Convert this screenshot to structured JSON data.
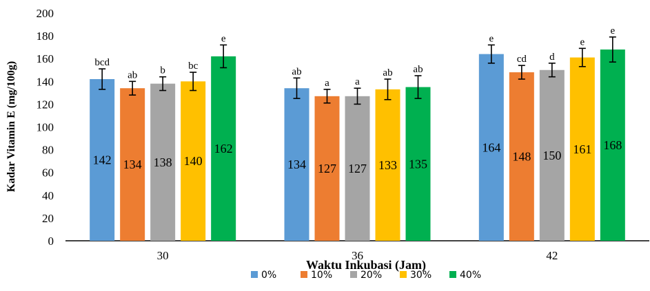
{
  "chart_data": {
    "type": "bar",
    "xlabel": "Waktu Inkubasi (Jam)",
    "ylabel": "Kadar Vitamin E (mg/100g)",
    "ylim": [
      0,
      200
    ],
    "yticks": [
      0,
      20,
      40,
      60,
      80,
      100,
      120,
      140,
      160,
      180,
      200
    ],
    "categories": [
      "30",
      "36",
      "42"
    ],
    "legend_position": "bottom",
    "grid": false,
    "error_bars": true,
    "series": [
      {
        "name": "0%",
        "color": "#5b9bd5",
        "values": [
          142,
          134,
          164
        ],
        "errors": [
          9,
          9,
          8
        ],
        "labels": [
          "bcd",
          "ab",
          "e"
        ]
      },
      {
        "name": "10%",
        "color": "#ed7d31",
        "values": [
          134,
          127,
          148
        ],
        "errors": [
          6,
          6,
          6
        ],
        "labels": [
          "ab",
          "a",
          "cd"
        ]
      },
      {
        "name": "20%",
        "color": "#a5a5a5",
        "values": [
          138,
          127,
          150
        ],
        "errors": [
          6,
          7,
          6
        ],
        "labels": [
          "b",
          "a",
          "d"
        ]
      },
      {
        "name": "30%",
        "color": "#ffc000",
        "values": [
          140,
          133,
          161
        ],
        "errors": [
          8,
          9,
          8
        ],
        "labels": [
          "bc",
          "ab",
          "e"
        ]
      },
      {
        "name": "40%",
        "color": "#00b050",
        "values": [
          162,
          135,
          168
        ],
        "errors": [
          10,
          10,
          11
        ],
        "labels": [
          "e",
          "ab",
          "e"
        ]
      }
    ]
  }
}
